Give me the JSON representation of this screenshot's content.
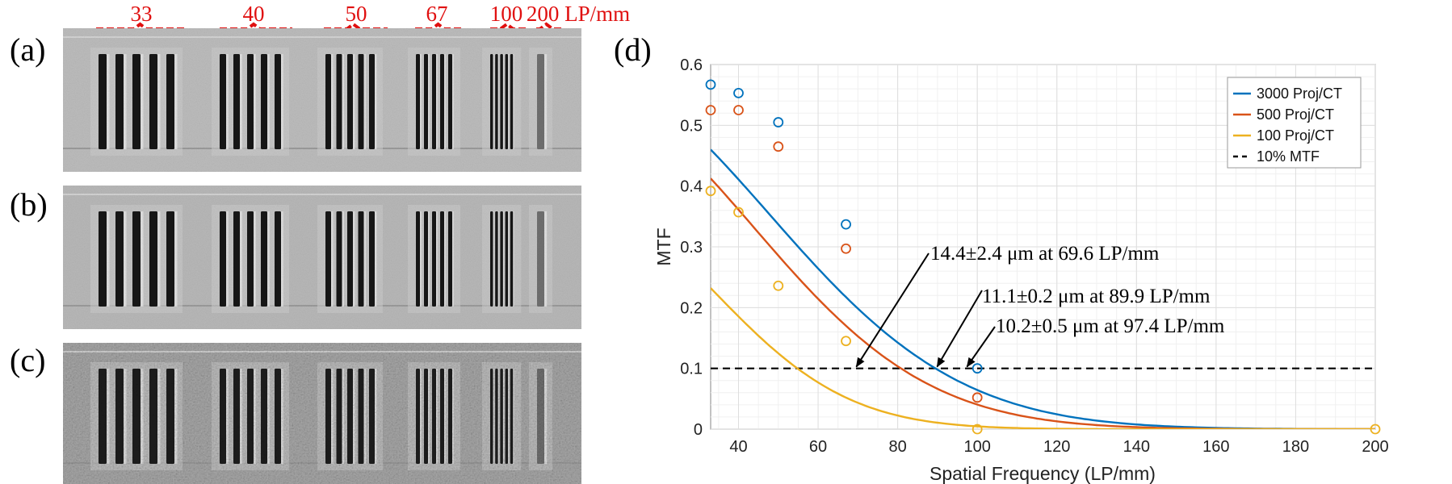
{
  "panels": {
    "a": "(a)",
    "b": "(b)",
    "c": "(c)",
    "d": "(d)"
  },
  "resolution_groups": {
    "labels": [
      "33",
      "40",
      "50",
      "67",
      "100",
      "200 LP/mm"
    ],
    "bar_counts": [
      5,
      5,
      5,
      5,
      5,
      1
    ],
    "bracket_color": "#e01010"
  },
  "image_rows": [
    {
      "label": "(a)",
      "noise": "low",
      "background": "#bdbdbd"
    },
    {
      "label": "(b)",
      "noise": "low",
      "background": "#b9b9b9"
    },
    {
      "label": "(c)",
      "noise": "high",
      "background": "#a9a9a9"
    }
  ],
  "chart_data": {
    "type": "line",
    "xlabel": "Spatial Frequency (LP/mm)",
    "ylabel": "MTF",
    "xlim": [
      33,
      200
    ],
    "ylim": [
      0,
      0.6
    ],
    "xticks": [
      40,
      60,
      80,
      100,
      120,
      140,
      160,
      180,
      200
    ],
    "yticks": [
      0,
      0.1,
      0.2,
      0.3,
      0.4,
      0.5,
      0.6
    ],
    "grid": true,
    "legend_position": "top-right",
    "series": [
      {
        "name": "3000 Proj/CT",
        "color": "#0072bd",
        "points_x": [
          33,
          40,
          50,
          67,
          100
        ],
        "points_y": [
          0.567,
          0.553,
          0.505,
          0.337,
          0.1
        ],
        "fit_a": 0.585,
        "fit_sigma": 47.6
      },
      {
        "name": "500 Proj/CT",
        "color": "#d95319",
        "points_x": [
          33,
          40,
          50,
          67,
          100
        ],
        "points_y": [
          0.525,
          0.525,
          0.465,
          0.297,
          0.052
        ],
        "fit_a": 0.548,
        "fit_sigma": 43.8
      },
      {
        "name": "100 Proj/CT",
        "color": "#edb120",
        "points_x": [
          33,
          40,
          50,
          67,
          100,
          200
        ],
        "points_y": [
          0.392,
          0.357,
          0.236,
          0.145,
          0.0,
          0.0
        ],
        "fit_a": 0.375,
        "fit_sigma": 33.7
      }
    ],
    "reference_line": {
      "name": "10% MTF",
      "y": 0.1,
      "color": "#000000",
      "style": "dashed"
    },
    "annotations": [
      {
        "text": "14.4±2.4 μm at 69.6 LP/mm",
        "x": 69.6,
        "y": 0.1
      },
      {
        "text": "11.1±0.2 μm at 89.9 LP/mm",
        "x": 89.9,
        "y": 0.1
      },
      {
        "text": "10.2±0.5 μm at 97.4 LP/mm",
        "x": 97.4,
        "y": 0.1
      }
    ]
  }
}
